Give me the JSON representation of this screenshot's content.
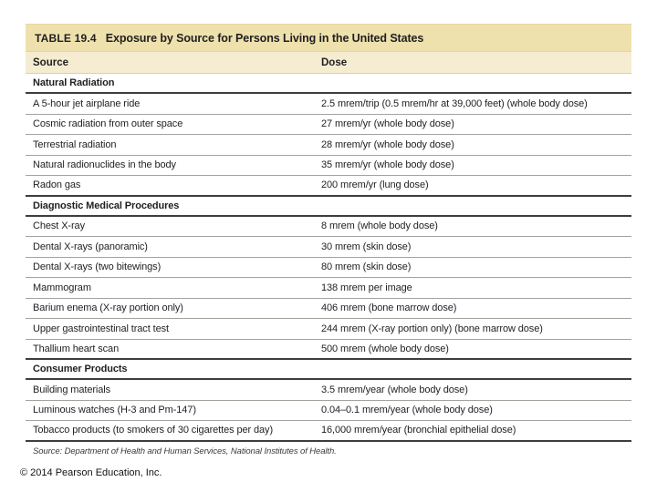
{
  "page": {
    "copyright": "© 2014 Pearson Education, Inc."
  },
  "table": {
    "label": "TABLE 19.4",
    "title": "Exposure by Source for Persons Living in the United States",
    "columns": [
      "Source",
      "Dose"
    ],
    "sections": [
      {
        "name": "Natural Radiation",
        "rows": [
          {
            "source": "A 5-hour jet airplane ride",
            "dose": "2.5 mrem/trip (0.5 mrem/hr at 39,000 feet) (whole body dose)"
          },
          {
            "source": "Cosmic radiation from outer space",
            "dose": "27 mrem/yr (whole body dose)"
          },
          {
            "source": "Terrestrial radiation",
            "dose": "28 mrem/yr (whole body dose)"
          },
          {
            "source": "Natural radionuclides in the body",
            "dose": "35 mrem/yr (whole body dose)"
          },
          {
            "source": "Radon gas",
            "dose": "200 mrem/yr (lung dose)"
          }
        ]
      },
      {
        "name": "Diagnostic Medical Procedures",
        "rows": [
          {
            "source": "Chest X-ray",
            "dose": "8 mrem (whole body dose)"
          },
          {
            "source": "Dental X-rays (panoramic)",
            "dose": "30 mrem (skin dose)"
          },
          {
            "source": "Dental X-rays (two bitewings)",
            "dose": "80 mrem (skin dose)"
          },
          {
            "source": "Mammogram",
            "dose": "138 mrem per image"
          },
          {
            "source": "Barium enema (X-ray portion only)",
            "dose": "406 mrem (bone marrow dose)"
          },
          {
            "source": "Upper gastrointestinal tract test",
            "dose": "244 mrem (X-ray portion only) (bone marrow dose)"
          },
          {
            "source": "Thallium heart scan",
            "dose": "500 mrem (whole body dose)"
          }
        ]
      },
      {
        "name": "Consumer Products",
        "rows": [
          {
            "source": "Building materials",
            "dose": "3.5 mrem/year (whole body dose)"
          },
          {
            "source": "Luminous watches (H-3 and Pm-147)",
            "dose": "0.04–0.1 mrem/year (whole body dose)"
          },
          {
            "source": "Tobacco products (to smokers of 30 cigarettes per day)",
            "dose": "16,000 mrem/year (bronchial epithelial dose)"
          }
        ]
      }
    ],
    "source_note": "Source: Department of Health and Human Services, National Institutes of Health.",
    "colors": {
      "title_bar_bg": "#efe1ad",
      "header_row_bg": "#f5ecd1",
      "row_rule": "#a3a29c",
      "section_rule": "#3d3d3d",
      "text": "#1f1f1f"
    }
  }
}
